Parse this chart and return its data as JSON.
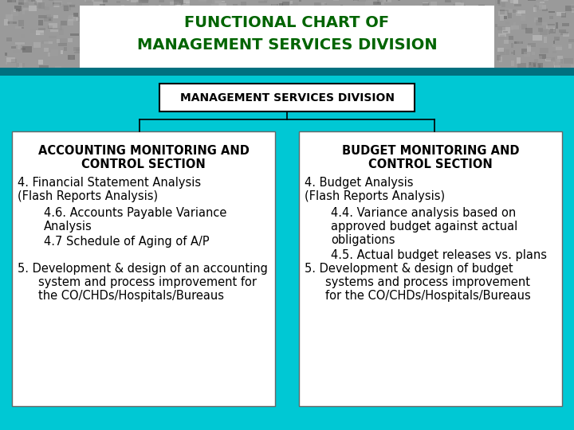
{
  "title_line1": "FUNCTIONAL CHART OF",
  "title_line2": "MANAGEMENT SERVICES DIVISION",
  "title_color": "#006400",
  "title_bg": "#ffffff",
  "bg_color": "#00c8d4",
  "top_bg_color": "#888888",
  "mid_box_text": "MANAGEMENT SERVICES DIVISION",
  "mid_box_bg": "#ffffff",
  "mid_box_border": "#000000",
  "left_box_bg": "#ffffff",
  "right_box_bg": "#ffffff",
  "box_border": "#666666",
  "left_header": "ACCOUNTING MONITORING AND\nCONTROL SECTION",
  "right_header": "BUDGET MONITORING AND\nCONTROL SECTION",
  "header_fontsize": 14,
  "body_fontsize": 10.5,
  "mid_fontsize": 10,
  "figsize": [
    7.2,
    5.4
  ],
  "dpi": 100
}
